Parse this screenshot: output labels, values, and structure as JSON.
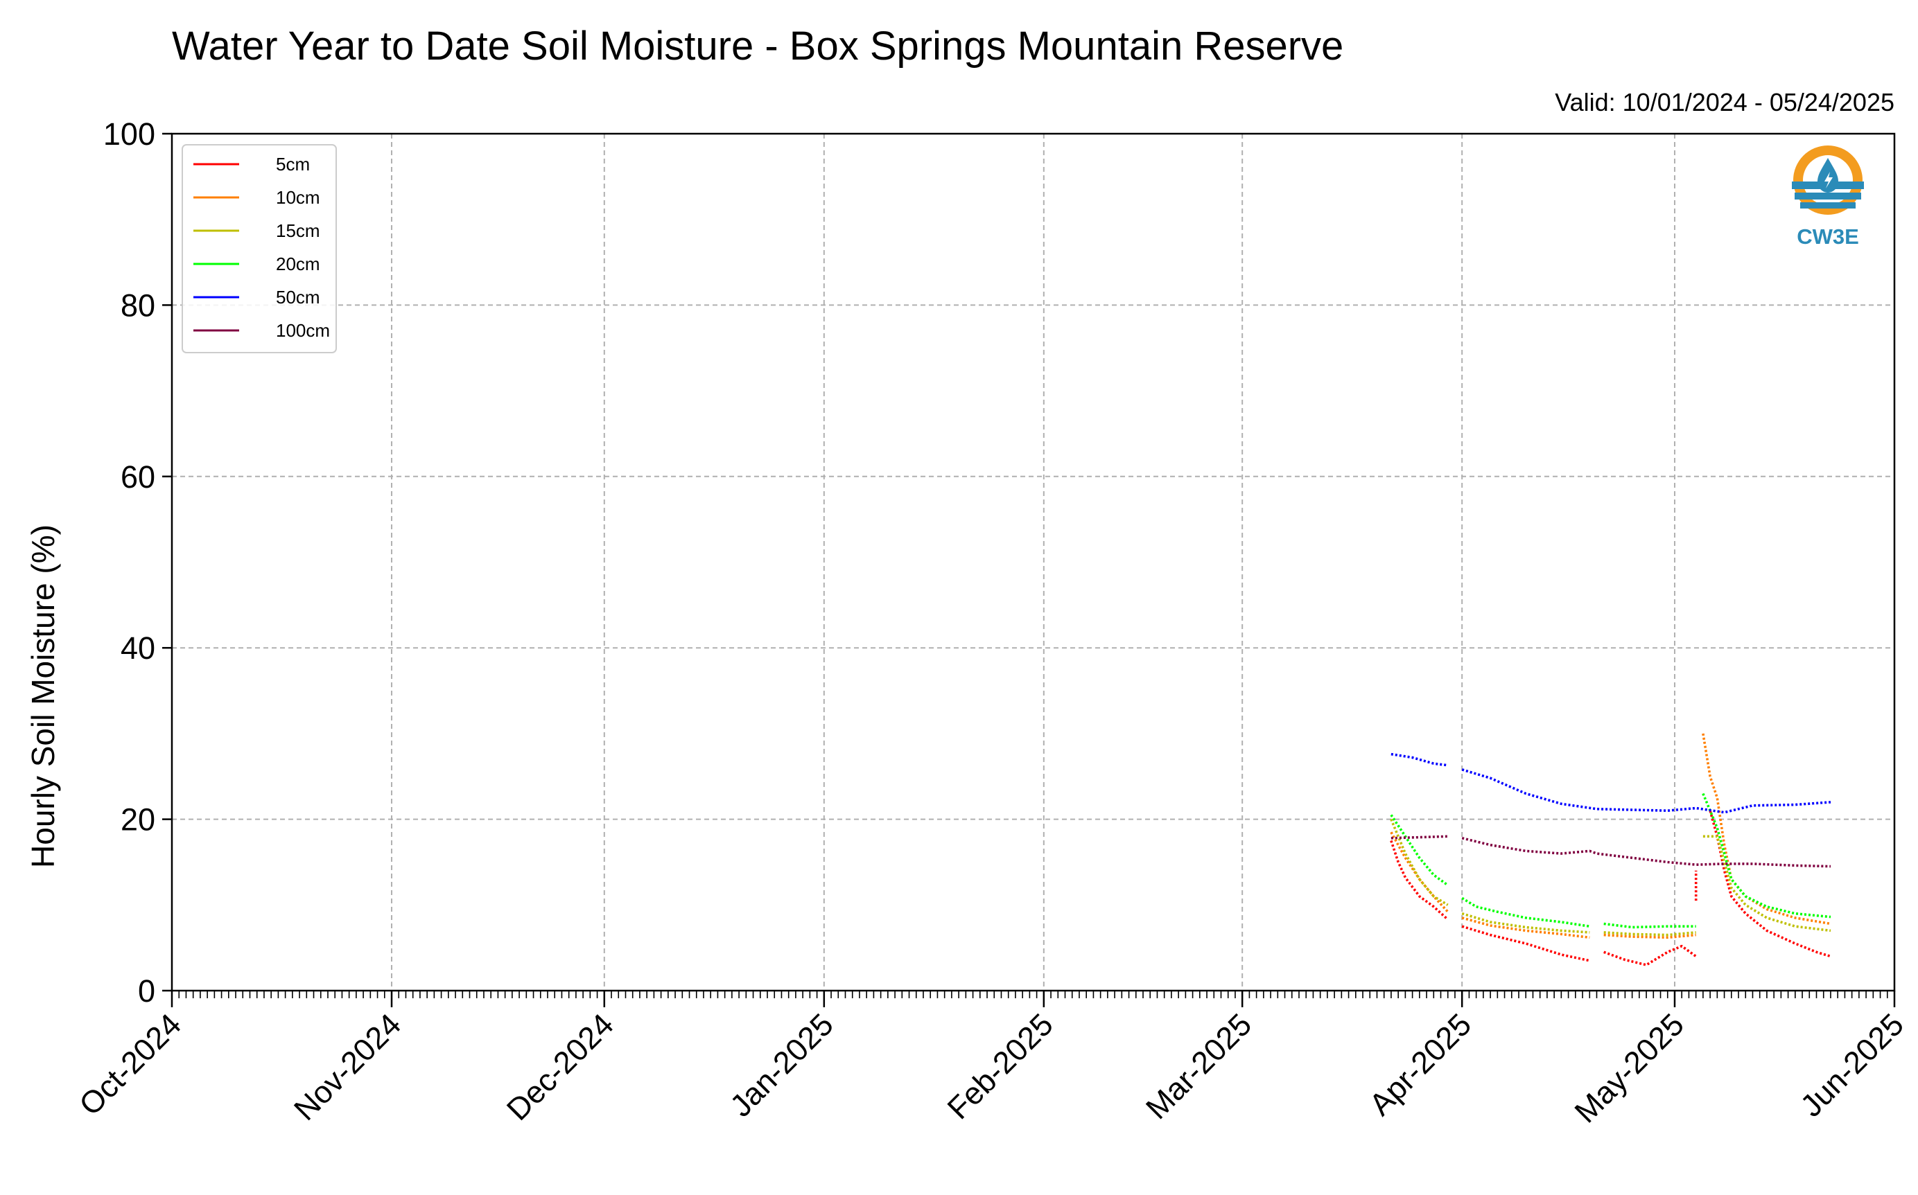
{
  "chart_data": {
    "type": "line",
    "title": "Water Year to Date Soil Moisture - Box Springs Mountain Reserve",
    "subtitle": "Valid: 10/01/2024 - 05/24/2025",
    "ylabel": "Hourly Soil Moisture (%)",
    "xlabel": "",
    "ylim": [
      0,
      100
    ],
    "yticks": [
      0,
      20,
      40,
      60,
      80,
      100
    ],
    "xlim": [
      "2024-10-01",
      "2025-06-01"
    ],
    "xticks": [
      {
        "date": "2024-10-01",
        "label": "Oct-2024"
      },
      {
        "date": "2024-11-01",
        "label": "Nov-2024"
      },
      {
        "date": "2024-12-01",
        "label": "Dec-2024"
      },
      {
        "date": "2025-01-01",
        "label": "Jan-2025"
      },
      {
        "date": "2025-02-01",
        "label": "Feb-2025"
      },
      {
        "date": "2025-03-01",
        "label": "Mar-2025"
      },
      {
        "date": "2025-04-01",
        "label": "Apr-2025"
      },
      {
        "date": "2025-05-01",
        "label": "May-2025"
      },
      {
        "date": "2025-06-01",
        "label": "Jun-2025"
      }
    ],
    "grid": true,
    "legend_position": "top-left",
    "series": [
      {
        "name": "5cm",
        "color": "#ff0000",
        "segments": [
          [
            [
              "2025-03-22",
              17.5
            ],
            [
              "2025-03-23",
              15.0
            ],
            [
              "2025-03-24",
              13.2
            ],
            [
              "2025-03-26",
              11.0
            ],
            [
              "2025-03-28",
              9.8
            ],
            [
              "2025-03-30",
              8.3
            ]
          ],
          [
            [
              "2025-04-01",
              7.5
            ],
            [
              "2025-04-05",
              6.5
            ],
            [
              "2025-04-10",
              5.5
            ],
            [
              "2025-04-15",
              4.2
            ],
            [
              "2025-04-19",
              3.5
            ]
          ],
          [
            [
              "2025-04-21",
              4.5
            ],
            [
              "2025-04-24",
              3.6
            ],
            [
              "2025-04-27",
              3.0
            ],
            [
              "2025-04-30",
              4.5
            ],
            [
              "2025-05-02",
              5.2
            ],
            [
              "2025-05-04",
              4.0
            ]
          ],
          [
            [
              "2025-05-04",
              10.5
            ],
            [
              "2025-05-04",
              14.0
            ]
          ],
          [
            [
              "2025-05-06",
              21.0
            ],
            [
              "2025-05-07",
              18.0
            ],
            [
              "2025-05-08",
              14.0
            ],
            [
              "2025-05-09",
              11.0
            ],
            [
              "2025-05-11",
              9.0
            ],
            [
              "2025-05-14",
              7.0
            ],
            [
              "2025-05-18",
              5.5
            ],
            [
              "2025-05-21",
              4.5
            ],
            [
              "2025-05-23",
              4.0
            ]
          ]
        ]
      },
      {
        "name": "10cm",
        "color": "#ff7f00",
        "segments": [
          [
            [
              "2025-03-22",
              18.5
            ],
            [
              "2025-03-24",
              15.5
            ],
            [
              "2025-03-26",
              13.0
            ],
            [
              "2025-03-28",
              11.0
            ],
            [
              "2025-03-30",
              9.2
            ]
          ],
          [
            [
              "2025-04-01",
              8.5
            ],
            [
              "2025-04-05",
              7.6
            ],
            [
              "2025-04-10",
              7.0
            ],
            [
              "2025-04-15",
              6.6
            ],
            [
              "2025-04-19",
              6.2
            ]
          ],
          [
            [
              "2025-04-21",
              6.5
            ],
            [
              "2025-04-25",
              6.3
            ],
            [
              "2025-04-30",
              6.2
            ],
            [
              "2025-05-04",
              6.5
            ]
          ],
          [
            [
              "2025-05-05",
              30.0
            ],
            [
              "2025-05-06",
              25.0
            ],
            [
              "2025-05-07",
              22.5
            ],
            [
              "2025-05-08",
              17.0
            ],
            [
              "2025-05-09",
              13.0
            ],
            [
              "2025-05-11",
              11.0
            ],
            [
              "2025-05-14",
              9.5
            ],
            [
              "2025-05-18",
              8.5
            ],
            [
              "2025-05-23",
              7.8
            ]
          ]
        ]
      },
      {
        "name": "15cm",
        "color": "#bfbf00",
        "segments": [
          [
            [
              "2025-03-22",
              20.0
            ],
            [
              "2025-03-24",
              16.0
            ],
            [
              "2025-03-26",
              13.0
            ],
            [
              "2025-03-28",
              11.0
            ],
            [
              "2025-03-30",
              10.0
            ]
          ],
          [
            [
              "2025-04-01",
              9.0
            ],
            [
              "2025-04-05",
              8.0
            ],
            [
              "2025-04-10",
              7.4
            ],
            [
              "2025-04-15",
              7.0
            ],
            [
              "2025-04-19",
              6.8
            ]
          ],
          [
            [
              "2025-04-21",
              6.8
            ],
            [
              "2025-04-25",
              6.6
            ],
            [
              "2025-04-30",
              6.5
            ],
            [
              "2025-05-04",
              6.8
            ]
          ],
          [
            [
              "2025-05-05",
              18.0
            ],
            [
              "2025-05-07",
              18.0
            ],
            [
              "2025-05-08",
              15.0
            ],
            [
              "2025-05-09",
              12.0
            ],
            [
              "2025-05-11",
              10.0
            ],
            [
              "2025-05-14",
              8.5
            ],
            [
              "2025-05-18",
              7.5
            ],
            [
              "2025-05-23",
              7.0
            ]
          ]
        ]
      },
      {
        "name": "20cm",
        "color": "#00ff00",
        "segments": [
          [
            [
              "2025-03-22",
              20.5
            ],
            [
              "2025-03-24",
              18.0
            ],
            [
              "2025-03-26",
              15.5
            ],
            [
              "2025-03-28",
              13.5
            ],
            [
              "2025-03-30",
              12.3
            ]
          ],
          [
            [
              "2025-04-01",
              10.8
            ],
            [
              "2025-04-03",
              9.8
            ],
            [
              "2025-04-06",
              9.2
            ],
            [
              "2025-04-10",
              8.5
            ],
            [
              "2025-04-15",
              8.0
            ],
            [
              "2025-04-19",
              7.5
            ]
          ],
          [
            [
              "2025-04-21",
              7.8
            ],
            [
              "2025-04-25",
              7.4
            ],
            [
              "2025-04-30",
              7.5
            ],
            [
              "2025-05-04",
              7.5
            ]
          ],
          [
            [
              "2025-05-05",
              23.0
            ],
            [
              "2025-05-06",
              21.0
            ],
            [
              "2025-05-07",
              19.0
            ],
            [
              "2025-05-08",
              16.0
            ],
            [
              "2025-05-09",
              13.0
            ],
            [
              "2025-05-11",
              11.0
            ],
            [
              "2025-05-14",
              9.8
            ],
            [
              "2025-05-18",
              9.0
            ],
            [
              "2025-05-23",
              8.6
            ]
          ]
        ]
      },
      {
        "name": "50cm",
        "color": "#0000ff",
        "segments": [
          [
            [
              "2025-03-22",
              27.6
            ],
            [
              "2025-03-25",
              27.2
            ],
            [
              "2025-03-28",
              26.5
            ],
            [
              "2025-03-30",
              26.3
            ]
          ],
          [
            [
              "2025-04-01",
              25.8
            ],
            [
              "2025-04-05",
              24.8
            ],
            [
              "2025-04-10",
              23.0
            ],
            [
              "2025-04-15",
              21.8
            ],
            [
              "2025-04-20",
              21.2
            ],
            [
              "2025-04-25",
              21.1
            ],
            [
              "2025-04-30",
              21.0
            ],
            [
              "2025-05-04",
              21.3
            ],
            [
              "2025-05-08",
              20.8
            ],
            [
              "2025-05-12",
              21.6
            ],
            [
              "2025-05-18",
              21.7
            ],
            [
              "2025-05-23",
              22.0
            ]
          ]
        ]
      },
      {
        "name": "100cm",
        "color": "#800040",
        "segments": [
          [
            [
              "2025-03-22",
              17.8
            ],
            [
              "2025-03-26",
              17.9
            ],
            [
              "2025-03-30",
              18.0
            ]
          ],
          [
            [
              "2025-04-01",
              17.8
            ],
            [
              "2025-04-05",
              17.0
            ],
            [
              "2025-04-10",
              16.3
            ],
            [
              "2025-04-15",
              16.0
            ],
            [
              "2025-04-19",
              16.3
            ],
            [
              "2025-04-20",
              16.0
            ],
            [
              "2025-04-25",
              15.5
            ],
            [
              "2025-04-30",
              15.0
            ],
            [
              "2025-05-04",
              14.7
            ],
            [
              "2025-05-08",
              14.8
            ],
            [
              "2025-05-12",
              14.8
            ],
            [
              "2025-05-18",
              14.6
            ],
            [
              "2025-05-23",
              14.5
            ]
          ]
        ]
      }
    ]
  },
  "logo": {
    "text": "CW3E",
    "icon": "water-drop-logo-icon",
    "primary_color": "#2b8bb8",
    "accent_color": "#f39c1f"
  }
}
